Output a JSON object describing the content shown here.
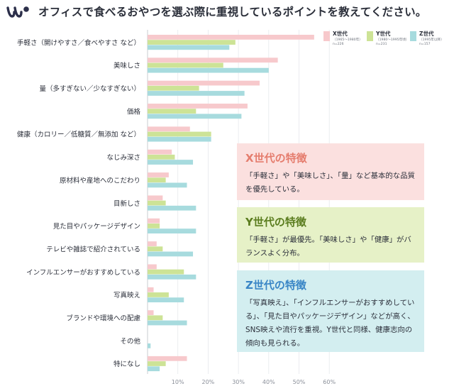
{
  "header": {
    "title": "オフィスで食べるおやつを選ぶ際に重視しているポイントを教えてください。"
  },
  "colors": {
    "x_gen": "#f7c9cc",
    "y_gen": "#cde396",
    "z_gen": "#a7dbde",
    "x_accent": "#e57d6e",
    "y_accent": "#5b7d1f",
    "z_accent": "#3a86c6",
    "logo": "#2c2f4a"
  },
  "chart_data": {
    "type": "bar",
    "orientation": "horizontal",
    "categories": [
      "手軽さ（開けやすさ／食べやすさ など）",
      "美味しさ",
      "量（多すぎない／少なすぎない）",
      "価格",
      "健康（カロリー／低糖質／無添加 など）",
      "なじみ深さ",
      "原材料や産地へのこだわり",
      "目新しさ",
      "見た目やパッケージデザイン",
      "テレビや雑誌で紹介されている",
      "インフルエンサーがおすすめしている",
      "写真映え",
      "ブランドや環境への配慮",
      "その他",
      "特になし"
    ],
    "series": [
      {
        "name": "X世代",
        "values": [
          55,
          43,
          37,
          33,
          14,
          8,
          7,
          5,
          4,
          3,
          3,
          2,
          2,
          0,
          13
        ]
      },
      {
        "name": "Y世代",
        "values": [
          29,
          25,
          17,
          16,
          21,
          9,
          6,
          6,
          4,
          5,
          12,
          7,
          5,
          0,
          6
        ]
      },
      {
        "name": "Z世代",
        "values": [
          27,
          40,
          32,
          31,
          21,
          15,
          13,
          16,
          16,
          15,
          16,
          12,
          13,
          1,
          4
        ]
      }
    ],
    "legend": [
      {
        "name": "X世代",
        "sub1": "（1965〜1980年）",
        "sub2": "n=226"
      },
      {
        "name": "Y世代",
        "sub1": "（1980〜1995年頃）",
        "sub2": "n=231"
      },
      {
        "name": "Z世代",
        "sub1": "（1995年以降）",
        "sub2": "n=157"
      }
    ],
    "xlim": [
      0,
      60
    ],
    "xticks": [
      10,
      20,
      30,
      40,
      50,
      60
    ],
    "xtick_labels": [
      "10%",
      "20%",
      "30%",
      "40%",
      "50%",
      "60%"
    ],
    "grid": true,
    "legend_position": "top-right"
  },
  "cards": {
    "x": {
      "heading": "X世代の特徴",
      "body": "「手軽さ」や「美味しさ」、「量」など基本的な品質を優先している。"
    },
    "y": {
      "heading": "Y世代の特徴",
      "body": "「手軽さ」が最優先。「美味しさ」や「健康」がバランスよく分布。"
    },
    "z": {
      "heading": "Z世代の特徴",
      "body": "「写真映え」、「インフルエンサーがおすすめしている」、「見た目やパッケージデザイン」などが高く、SNS映えや流行を重視。Y世代と同様、健康志向の傾向も見られる。"
    }
  }
}
